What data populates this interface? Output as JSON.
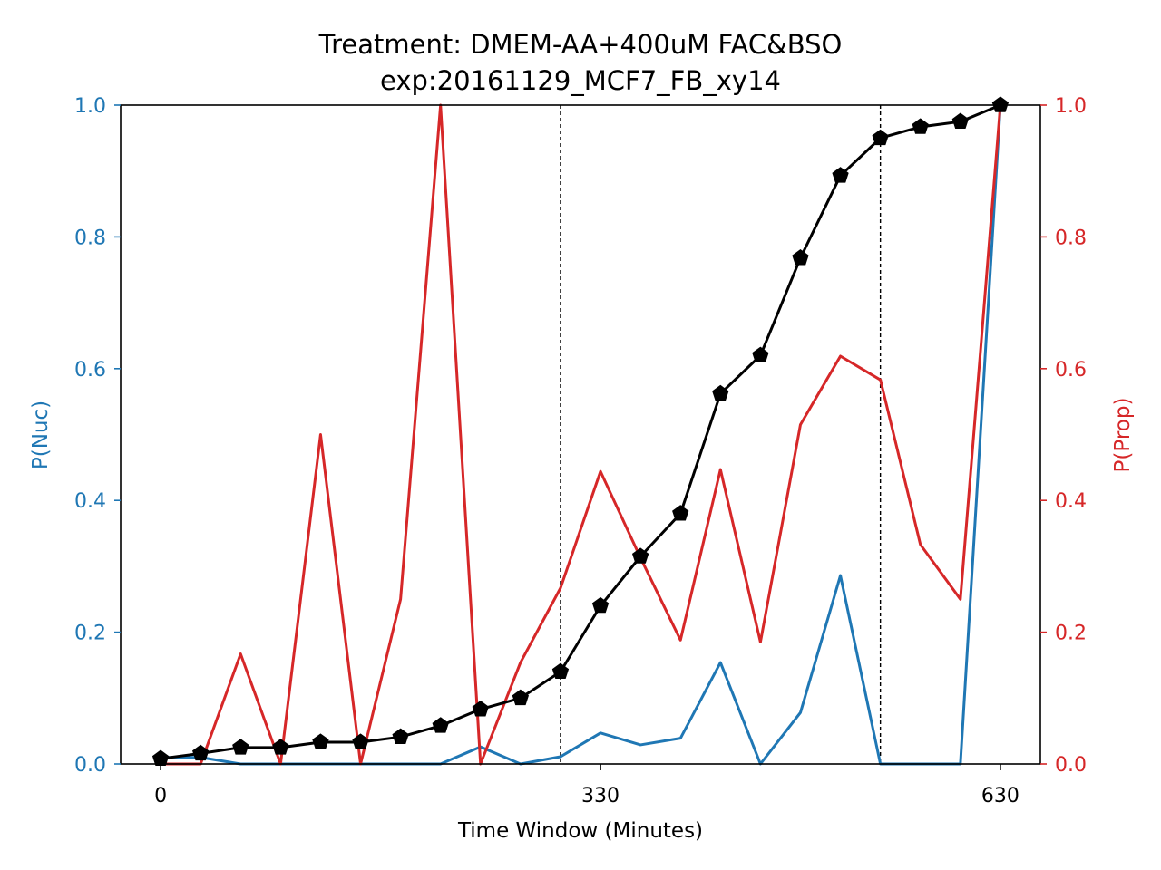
{
  "chart_data": {
    "type": "line",
    "title": "Treatment: DMEM-AA+400uM FAC&BSO",
    "subtitle": "exp:20161129_MCF7_FB_xy14",
    "xlabel": "Time Window (Minutes)",
    "ylabel_left": "P(Nuc)",
    "ylabel_right": "P(Prop)",
    "xlim": [
      -30,
      660
    ],
    "ylim_left": [
      0,
      1
    ],
    "ylim_right": [
      0,
      1
    ],
    "x_ticks": [
      0,
      330,
      630
    ],
    "x_tick_labels": [
      "0",
      "330",
      "630"
    ],
    "y_ticks_left": [
      0.0,
      0.2,
      0.4,
      0.6,
      0.8,
      1.0
    ],
    "y_tick_labels_left": [
      "0.0",
      "0.2",
      "0.4",
      "0.6",
      "0.8",
      "1.0"
    ],
    "y_ticks_right": [
      0.0,
      0.2,
      0.4,
      0.6,
      0.8,
      1.0
    ],
    "y_tick_labels_right": [
      "0.0",
      "0.2",
      "0.4",
      "0.6",
      "0.8",
      "1.0"
    ],
    "vlines": [
      300,
      540
    ],
    "grid": false,
    "legend": "none",
    "x": [
      0,
      30,
      60,
      90,
      120,
      150,
      180,
      210,
      240,
      270,
      300,
      330,
      360,
      390,
      420,
      450,
      480,
      510,
      540,
      570,
      600,
      630
    ],
    "series": [
      {
        "axis": "left",
        "color": "#1f77b4",
        "marker": "none",
        "values": [
          0.01,
          0.01,
          0.0,
          0.0,
          0.0,
          0.0,
          0.0,
          0.0,
          0.026,
          0.0,
          0.011,
          0.047,
          0.029,
          0.039,
          0.154,
          0.0,
          0.078,
          0.286,
          0.0,
          0.0,
          0.0,
          1.0
        ]
      },
      {
        "axis": "right",
        "color": "#d62728",
        "marker": "none",
        "values": [
          0.0,
          0.0,
          0.167,
          0.0,
          0.5,
          0.0,
          0.25,
          1.0,
          0.0,
          0.154,
          0.267,
          0.444,
          0.313,
          0.188,
          0.447,
          0.185,
          0.515,
          0.619,
          0.583,
          0.333,
          0.25,
          1.0
        ]
      },
      {
        "axis": "left",
        "color": "#000000",
        "marker": "pentagon",
        "values": [
          0.008,
          0.016,
          0.025,
          0.025,
          0.033,
          0.033,
          0.041,
          0.058,
          0.083,
          0.1,
          0.14,
          0.24,
          0.315,
          0.38,
          0.562,
          0.62,
          0.768,
          0.893,
          0.95,
          0.967,
          0.975,
          1.0
        ]
      }
    ],
    "colors": {
      "left_axis": "#1f77b4",
      "right_axis": "#d62728",
      "cumulative": "#000000"
    }
  }
}
